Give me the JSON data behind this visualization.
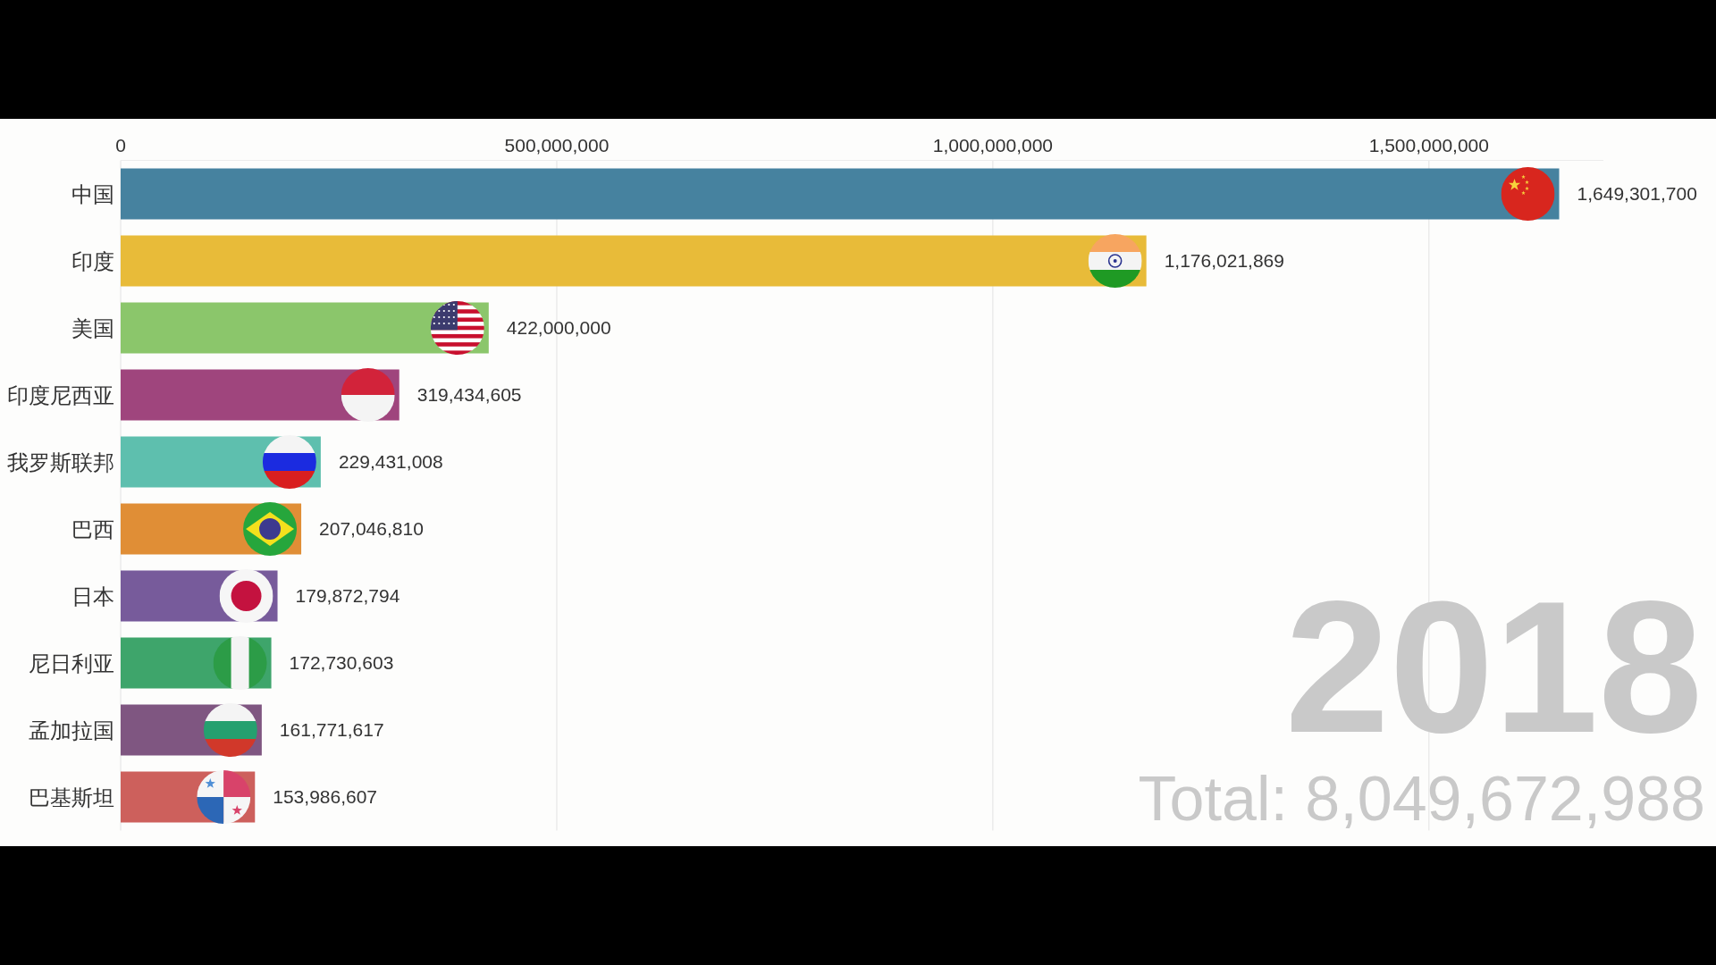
{
  "chart_data": {
    "type": "bar",
    "orientation": "horizontal",
    "categories": [
      "中国",
      "印度",
      "美国",
      "印度尼西亚",
      "我罗斯联邦",
      "巴西",
      "日本",
      "尼日利亚",
      "孟加拉国",
      "巴基斯坦"
    ],
    "values": [
      1649301700,
      1176021869,
      422000000,
      319434605,
      229431008,
      207046810,
      179872794,
      172730603,
      161771617,
      153986607
    ],
    "value_labels": [
      "1,649,301,700",
      "1,176,021,869",
      "422,000,000",
      "319,434,605",
      "229,431,008",
      "207,046,810",
      "179,872,794",
      "172,730,603",
      "161,771,617",
      "153,986,607"
    ],
    "colors": [
      "#46829f",
      "#e8bb39",
      "#8bc66b",
      "#9f457d",
      "#5ebfae",
      "#e08e36",
      "#775b9b",
      "#3ea56b",
      "#7f5681",
      "#cd605c"
    ],
    "xlim": [
      0,
      1700000000
    ],
    "xticks": [
      0,
      {
        "value": 500000000,
        "label": "500,000,000"
      },
      {
        "value": 1000000000,
        "label": "1,000,000,000"
      },
      {
        "value": 1500000000,
        "label": "1,500,000,000"
      }
    ],
    "grid": "x",
    "annotations": [
      "2018",
      "Total: 8,049,672,988"
    ]
  }
}
